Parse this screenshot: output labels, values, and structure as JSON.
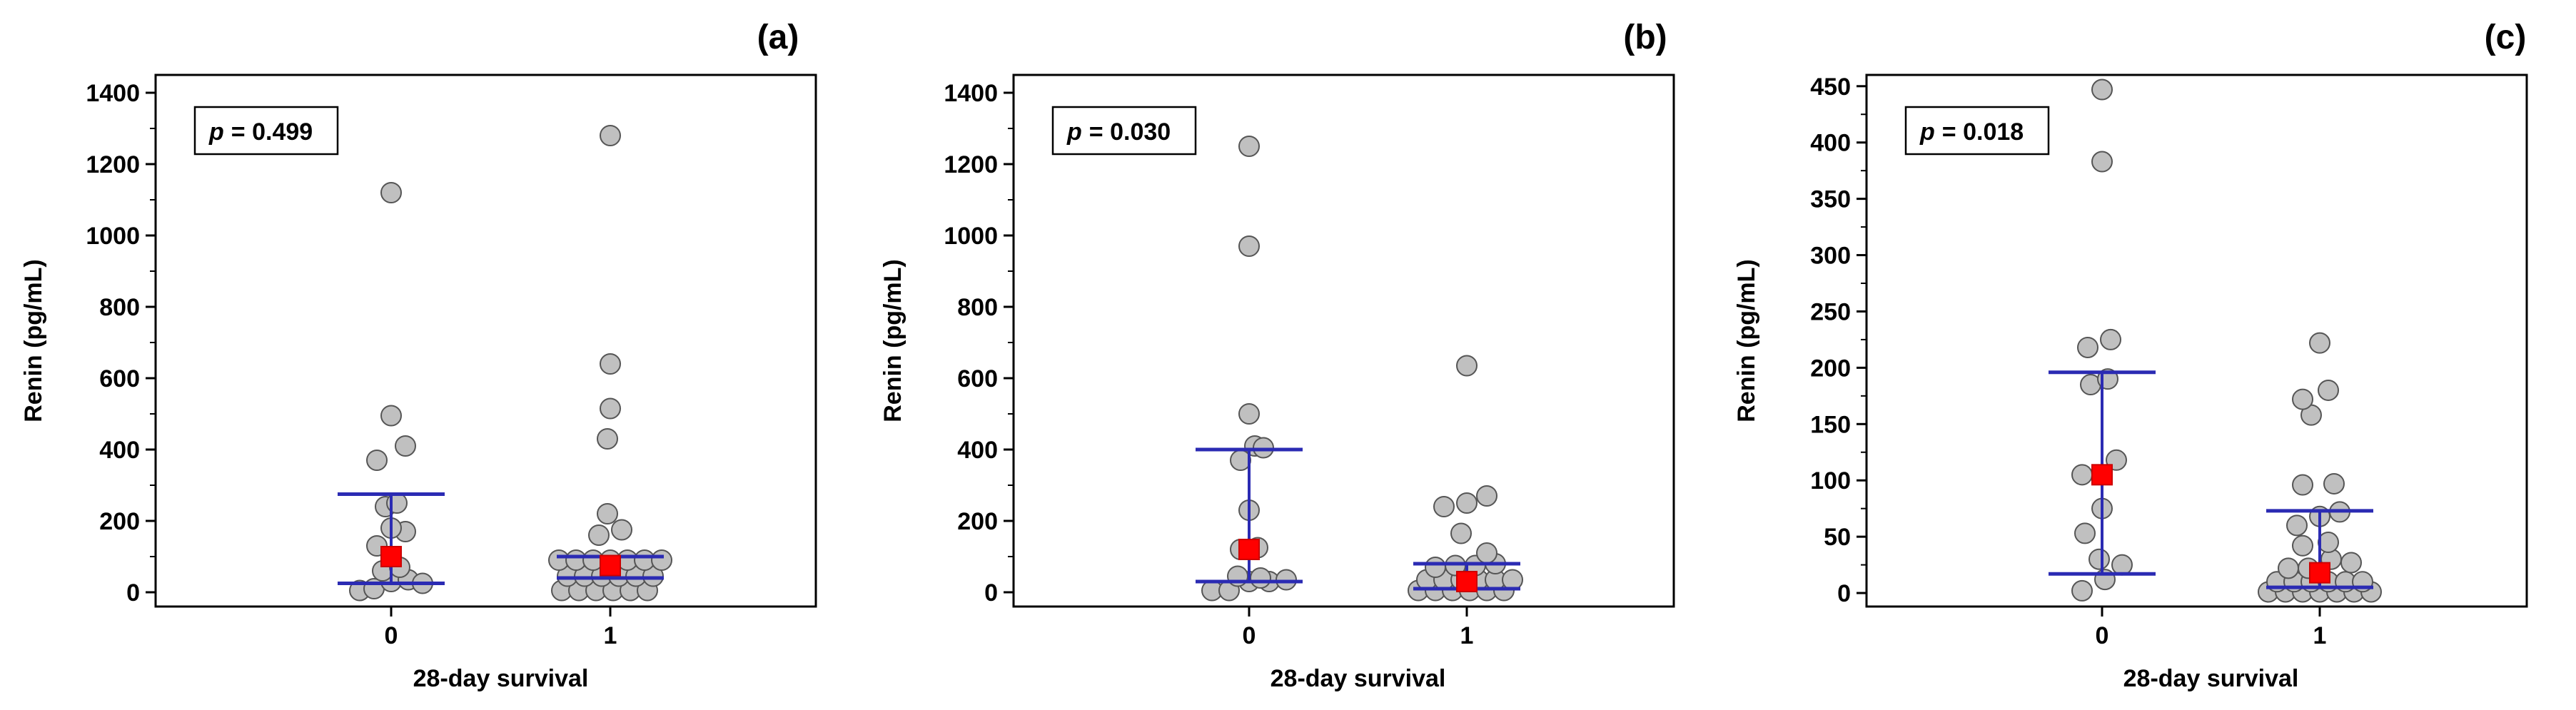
{
  "colors": {
    "point_fill": "#c0c0c0",
    "point_stroke": "#555555",
    "median_fill": "#ff0000",
    "median_stroke": "#cc0000",
    "whisker": "#2b2bb3",
    "axis": "#000000"
  },
  "chart_data": [
    {
      "type": "scatter",
      "panel_label": "(a)",
      "p_text": "p = 0.499",
      "p_symbol": "p",
      "p_value": "= 0.499",
      "xlabel": "28-day survival",
      "ylabel": "Renin (pg/mL)",
      "categories": [
        "0",
        "1"
      ],
      "ylim": [
        -40,
        1450
      ],
      "yticks": [
        0,
        200,
        400,
        600,
        800,
        1000,
        1200,
        1400
      ],
      "yticks_minor": [
        100,
        300,
        500,
        700,
        900,
        1100,
        1300
      ],
      "groups": [
        {
          "category": "0",
          "points": [
            {
              "o": -0.22,
              "y": 5
            },
            {
              "o": -0.12,
              "y": 10
            },
            {
              "o": 0.0,
              "y": 30
            },
            {
              "o": 0.12,
              "y": 35
            },
            {
              "o": 0.22,
              "y": 25
            },
            {
              "o": -0.06,
              "y": 60
            },
            {
              "o": 0.06,
              "y": 70
            },
            {
              "o": -0.1,
              "y": 130
            },
            {
              "o": 0.1,
              "y": 170
            },
            {
              "o": 0.0,
              "y": 180
            },
            {
              "o": -0.04,
              "y": 240
            },
            {
              "o": 0.04,
              "y": 250
            },
            {
              "o": -0.1,
              "y": 370
            },
            {
              "o": 0.1,
              "y": 410
            },
            {
              "o": 0.0,
              "y": 495
            },
            {
              "o": 0.0,
              "y": 1120
            }
          ],
          "median": 100,
          "error_low": 25,
          "error_high": 275
        },
        {
          "category": "1",
          "points": [
            {
              "o": -0.34,
              "y": 5
            },
            {
              "o": -0.22,
              "y": 5
            },
            {
              "o": -0.1,
              "y": 5
            },
            {
              "o": 0.02,
              "y": 5
            },
            {
              "o": 0.14,
              "y": 5
            },
            {
              "o": 0.26,
              "y": 5
            },
            {
              "o": -0.3,
              "y": 45
            },
            {
              "o": -0.18,
              "y": 45
            },
            {
              "o": -0.06,
              "y": 45
            },
            {
              "o": 0.06,
              "y": 45
            },
            {
              "o": 0.18,
              "y": 45
            },
            {
              "o": 0.3,
              "y": 45
            },
            {
              "o": -0.36,
              "y": 90
            },
            {
              "o": -0.24,
              "y": 90
            },
            {
              "o": -0.12,
              "y": 90
            },
            {
              "o": 0.0,
              "y": 90
            },
            {
              "o": 0.12,
              "y": 90
            },
            {
              "o": 0.24,
              "y": 90
            },
            {
              "o": 0.36,
              "y": 90
            },
            {
              "o": -0.08,
              "y": 160
            },
            {
              "o": 0.08,
              "y": 175
            },
            {
              "o": -0.02,
              "y": 220
            },
            {
              "o": -0.02,
              "y": 430
            },
            {
              "o": 0.0,
              "y": 515
            },
            {
              "o": 0.0,
              "y": 640
            },
            {
              "o": 0.0,
              "y": 1280
            }
          ],
          "median": 75,
          "error_low": 40,
          "error_high": 100
        }
      ]
    },
    {
      "type": "scatter",
      "panel_label": "(b)",
      "p_text": "p = 0.030",
      "p_symbol": "p",
      "p_value": "= 0.030",
      "xlabel": "28-day survival",
      "ylabel": "Renin (pg/mL)",
      "categories": [
        "0",
        "1"
      ],
      "ylim": [
        -40,
        1450
      ],
      "yticks": [
        0,
        200,
        400,
        600,
        800,
        1000,
        1200,
        1400
      ],
      "yticks_minor": [
        100,
        300,
        500,
        700,
        900,
        1100,
        1300
      ],
      "groups": [
        {
          "category": "0",
          "points": [
            {
              "o": -0.26,
              "y": 5
            },
            {
              "o": -0.14,
              "y": 5
            },
            {
              "o": 0.0,
              "y": 30
            },
            {
              "o": 0.14,
              "y": 30
            },
            {
              "o": 0.26,
              "y": 35
            },
            {
              "o": -0.08,
              "y": 45
            },
            {
              "o": 0.08,
              "y": 40
            },
            {
              "o": -0.06,
              "y": 120
            },
            {
              "o": 0.06,
              "y": 125
            },
            {
              "o": 0.0,
              "y": 230
            },
            {
              "o": -0.06,
              "y": 370
            },
            {
              "o": 0.04,
              "y": 410
            },
            {
              "o": 0.1,
              "y": 405
            },
            {
              "o": 0.0,
              "y": 500
            },
            {
              "o": 0.0,
              "y": 970
            },
            {
              "o": 0.0,
              "y": 1250
            }
          ],
          "median": 120,
          "error_low": 30,
          "error_high": 400
        },
        {
          "category": "1",
          "points": [
            {
              "o": -0.34,
              "y": 5
            },
            {
              "o": -0.22,
              "y": 5
            },
            {
              "o": -0.1,
              "y": 5
            },
            {
              "o": 0.02,
              "y": 5
            },
            {
              "o": 0.14,
              "y": 5
            },
            {
              "o": 0.26,
              "y": 5
            },
            {
              "o": -0.28,
              "y": 35
            },
            {
              "o": -0.16,
              "y": 35
            },
            {
              "o": -0.04,
              "y": 35
            },
            {
              "o": 0.08,
              "y": 35
            },
            {
              "o": 0.2,
              "y": 35
            },
            {
              "o": 0.32,
              "y": 35
            },
            {
              "o": -0.22,
              "y": 70
            },
            {
              "o": -0.08,
              "y": 75
            },
            {
              "o": 0.06,
              "y": 75
            },
            {
              "o": 0.2,
              "y": 80
            },
            {
              "o": -0.04,
              "y": 165
            },
            {
              "o": 0.14,
              "y": 110
            },
            {
              "o": -0.16,
              "y": 240
            },
            {
              "o": 0.0,
              "y": 250
            },
            {
              "o": 0.14,
              "y": 270
            },
            {
              "o": 0.0,
              "y": 635
            }
          ],
          "median": 30,
          "error_low": 10,
          "error_high": 80
        }
      ]
    },
    {
      "type": "scatter",
      "panel_label": "(c)",
      "p_text": "p = 0.018",
      "p_symbol": "p",
      "p_value": "= 0.018",
      "xlabel": "28-day survival",
      "ylabel": "Renin (pg/mL)",
      "categories": [
        "0",
        "1"
      ],
      "ylim": [
        -12,
        460
      ],
      "yticks": [
        0,
        50,
        100,
        150,
        200,
        250,
        300,
        350,
        400,
        450
      ],
      "yticks_minor": [
        25,
        75,
        125,
        175,
        225,
        275,
        325,
        375,
        425
      ],
      "groups": [
        {
          "category": "0",
          "points": [
            {
              "o": -0.14,
              "y": 2
            },
            {
              "o": 0.02,
              "y": 12
            },
            {
              "o": 0.14,
              "y": 25
            },
            {
              "o": -0.02,
              "y": 30
            },
            {
              "o": -0.12,
              "y": 53
            },
            {
              "o": 0.0,
              "y": 75
            },
            {
              "o": -0.14,
              "y": 105
            },
            {
              "o": 0.1,
              "y": 118
            },
            {
              "o": -0.08,
              "y": 185
            },
            {
              "o": 0.04,
              "y": 190
            },
            {
              "o": -0.1,
              "y": 218
            },
            {
              "o": 0.06,
              "y": 225
            },
            {
              "o": 0.0,
              "y": 383
            },
            {
              "o": 0.0,
              "y": 447
            }
          ],
          "median": 105,
          "error_low": 17,
          "error_high": 196
        },
        {
          "category": "1",
          "points": [
            {
              "o": -0.36,
              "y": 1
            },
            {
              "o": -0.24,
              "y": 1
            },
            {
              "o": -0.12,
              "y": 1
            },
            {
              "o": 0.0,
              "y": 1
            },
            {
              "o": 0.12,
              "y": 1
            },
            {
              "o": 0.24,
              "y": 1
            },
            {
              "o": 0.36,
              "y": 1
            },
            {
              "o": -0.3,
              "y": 10
            },
            {
              "o": -0.18,
              "y": 10
            },
            {
              "o": -0.06,
              "y": 10
            },
            {
              "o": 0.06,
              "y": 10
            },
            {
              "o": 0.18,
              "y": 10
            },
            {
              "o": 0.3,
              "y": 10
            },
            {
              "o": -0.22,
              "y": 22
            },
            {
              "o": -0.08,
              "y": 22
            },
            {
              "o": 0.08,
              "y": 30
            },
            {
              "o": 0.22,
              "y": 27
            },
            {
              "o": -0.12,
              "y": 42
            },
            {
              "o": 0.06,
              "y": 45
            },
            {
              "o": -0.16,
              "y": 60
            },
            {
              "o": 0.0,
              "y": 68
            },
            {
              "o": 0.14,
              "y": 72
            },
            {
              "o": -0.12,
              "y": 96
            },
            {
              "o": 0.1,
              "y": 97
            },
            {
              "o": -0.06,
              "y": 158
            },
            {
              "o": -0.12,
              "y": 172
            },
            {
              "o": 0.06,
              "y": 180
            },
            {
              "o": 0.0,
              "y": 222
            }
          ],
          "median": 18,
          "error_low": 5,
          "error_high": 73
        }
      ]
    }
  ]
}
